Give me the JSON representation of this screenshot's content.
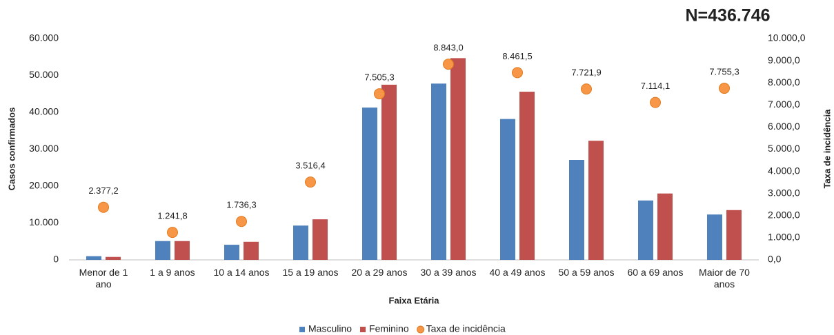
{
  "chart_data": {
    "type": "bar",
    "annotation": "N=436.746",
    "x_label": "Faixa Etária",
    "y_label": "Casos confirmados",
    "y2_label": "Taxa de incidência",
    "categories": [
      "Menor de 1 ano",
      "1 a 9 anos",
      "10 a 14 anos",
      "15 a 19 anos",
      "20 a 29 anos",
      "30 a 39 anos",
      "40 a 49 anos",
      "50 a 59 anos",
      "60 a 69 anos",
      "Maior de 70 anos"
    ],
    "series": [
      {
        "name": "Masculino",
        "type": "bar",
        "color": "#4f81bd",
        "values": [
          1000,
          5100,
          4100,
          9300,
          41300,
          47800,
          38200,
          27100,
          16100,
          12300
        ]
      },
      {
        "name": "Feminino",
        "type": "bar",
        "color": "#c0504d",
        "values": [
          800,
          5100,
          4900,
          11000,
          47500,
          54700,
          45600,
          32300,
          18000,
          13500
        ]
      },
      {
        "name": "Taxa de incidência",
        "type": "scatter",
        "axis": "y2",
        "color": "#f79646",
        "values": [
          2377.2,
          1241.8,
          1736.3,
          3516.4,
          7505.3,
          8843.0,
          8461.5,
          7721.9,
          7114.1,
          7755.3
        ],
        "value_labels": [
          "2.377,2",
          "1.241,8",
          "1.736,3",
          "3.516,4",
          "7.505,3",
          "8.843,0",
          "8.461,5",
          "7.721,9",
          "7.114,1",
          "7.755,3"
        ]
      }
    ],
    "ylim": [
      0,
      60000
    ],
    "yticks": [
      0,
      {
        "value": 10000,
        "label": "10.000"
      },
      {
        "value": 20000,
        "label": "20.000"
      },
      {
        "value": 30000,
        "label": "30.000"
      },
      {
        "value": 40000,
        "label": "40.000"
      },
      {
        "value": 50000,
        "label": "50.000"
      },
      {
        "value": 60000,
        "label": "60.000"
      }
    ],
    "y2lim": [
      0,
      10000
    ],
    "y2ticks": [
      {
        "value": 0,
        "label": "0,0"
      },
      {
        "value": 1000,
        "label": "1.000,0"
      },
      {
        "value": 2000,
        "label": "2.000,0"
      },
      {
        "value": 3000,
        "label": "3.000,0"
      },
      {
        "value": 4000,
        "label": "4.000,0"
      },
      {
        "value": 5000,
        "label": "5.000,0"
      },
      {
        "value": 6000,
        "label": "6.000,0"
      },
      {
        "value": 7000,
        "label": "7.000,0"
      },
      {
        "value": 8000,
        "label": "8.000,0"
      },
      {
        "value": 9000,
        "label": "9.000,0"
      },
      {
        "value": 10000,
        "label": "10.000,0"
      }
    ],
    "grid": false,
    "legend": "bottom"
  }
}
